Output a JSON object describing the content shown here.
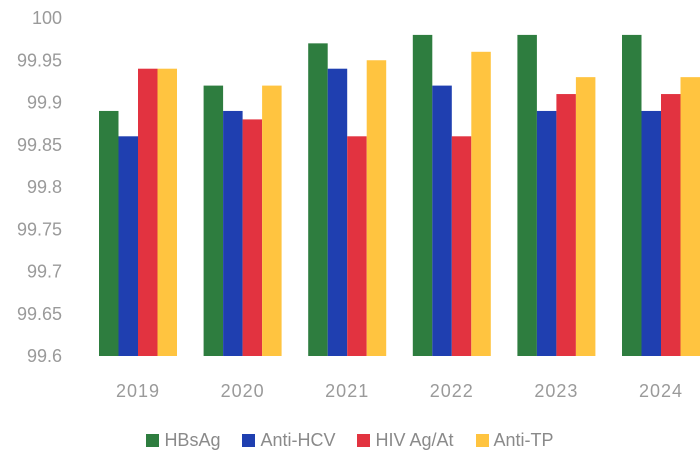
{
  "chart_data": {
    "type": "bar",
    "title": "",
    "xlabel": "",
    "ylabel": "",
    "categories": [
      "2019",
      "2020",
      "2021",
      "2022",
      "2023",
      "2024"
    ],
    "ylim": [
      99.6,
      100
    ],
    "yticks": [
      "99.6",
      "99.65",
      "99.7",
      "99.75",
      "99.8",
      "99.85",
      "99.9",
      "99.95",
      "100"
    ],
    "grid": false,
    "legend_position": "bottom",
    "series": [
      {
        "name": "HBsAg",
        "color": "#2e7d3f",
        "values": [
          99.89,
          99.92,
          99.97,
          99.98,
          99.98,
          99.98
        ]
      },
      {
        "name": "Anti-HCV",
        "color": "#1f3fb0",
        "values": [
          99.86,
          99.89,
          99.94,
          99.92,
          99.89,
          99.89
        ]
      },
      {
        "name": "HIV Ag/At",
        "color": "#e23340",
        "values": [
          99.94,
          99.88,
          99.86,
          99.86,
          99.91,
          99.91
        ]
      },
      {
        "name": "Anti-TP",
        "color": "#ffc440",
        "values": [
          99.94,
          99.92,
          99.95,
          99.96,
          99.93,
          99.93
        ]
      }
    ]
  }
}
